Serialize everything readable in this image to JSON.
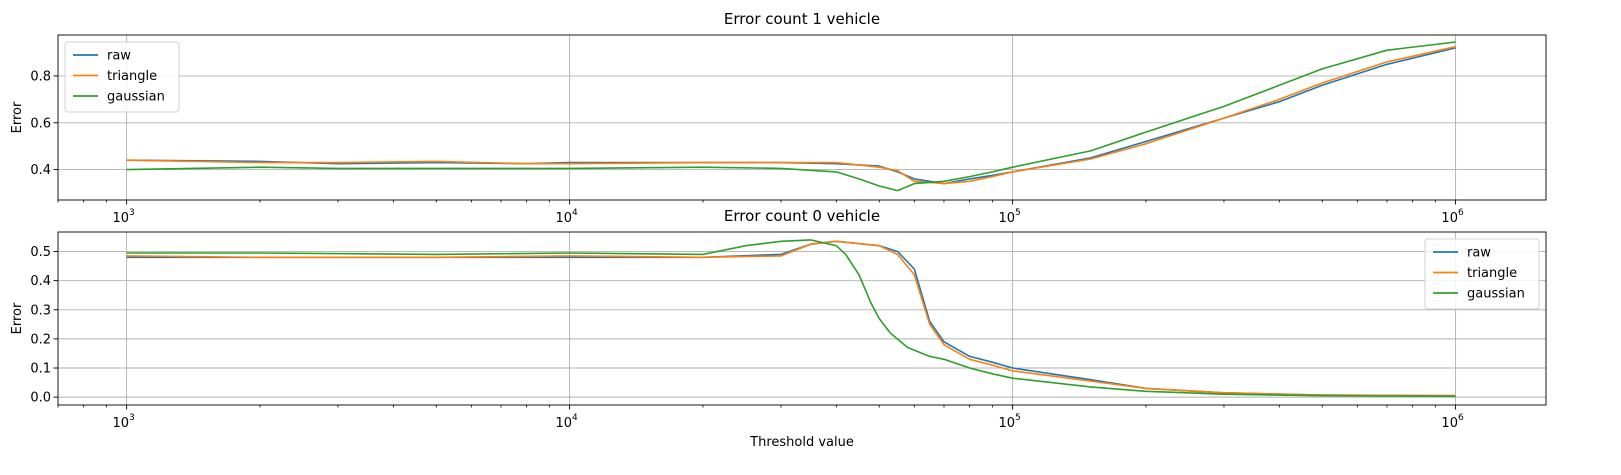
{
  "chart_data": [
    {
      "type": "line",
      "title": "Error count 1 vehicle",
      "xlabel": "",
      "ylabel": "Error",
      "xscale": "log",
      "xlim": [
        700,
        1600000
      ],
      "ylim": [
        0.27,
        0.975
      ],
      "xticks": [
        1000,
        10000,
        100000,
        1000000
      ],
      "xtick_labels": [
        {
          "base": "10",
          "exp": "3"
        },
        {
          "base": "10",
          "exp": "4"
        },
        {
          "base": "10",
          "exp": "5"
        },
        {
          "base": "10",
          "exp": "6"
        }
      ],
      "yticks": [
        0.4,
        0.6,
        0.8
      ],
      "ytick_labels": [
        "0.4",
        "0.6",
        "0.8"
      ],
      "grid": true,
      "legend_position": "upper left",
      "series": [
        {
          "name": "raw",
          "color": "#1f77b4",
          "x": [
            1000,
            2000,
            3000,
            5000,
            8000,
            10000,
            20000,
            30000,
            40000,
            50000,
            55000,
            60000,
            70000,
            80000,
            90000,
            100000,
            150000,
            200000,
            300000,
            400000,
            500000,
            700000,
            1000000
          ],
          "values": [
            0.44,
            0.435,
            0.425,
            0.43,
            0.425,
            0.43,
            0.43,
            0.43,
            0.425,
            0.415,
            0.39,
            0.36,
            0.34,
            0.36,
            0.375,
            0.39,
            0.45,
            0.52,
            0.62,
            0.69,
            0.76,
            0.85,
            0.92
          ]
        },
        {
          "name": "triangle",
          "color": "#ff7f0e",
          "x": [
            1000,
            2000,
            3000,
            5000,
            8000,
            10000,
            20000,
            30000,
            40000,
            50000,
            55000,
            60000,
            70000,
            80000,
            90000,
            100000,
            150000,
            200000,
            300000,
            400000,
            500000,
            700000,
            1000000
          ],
          "values": [
            0.44,
            0.43,
            0.43,
            0.435,
            0.425,
            0.425,
            0.43,
            0.43,
            0.43,
            0.41,
            0.395,
            0.35,
            0.34,
            0.35,
            0.37,
            0.39,
            0.445,
            0.51,
            0.62,
            0.7,
            0.77,
            0.86,
            0.925
          ]
        },
        {
          "name": "gaussian",
          "color": "#2ca02c",
          "x": [
            1000,
            2000,
            3000,
            5000,
            8000,
            10000,
            20000,
            30000,
            40000,
            45000,
            50000,
            55000,
            60000,
            70000,
            80000,
            90000,
            100000,
            150000,
            200000,
            300000,
            400000,
            500000,
            700000,
            1000000
          ],
          "values": [
            0.4,
            0.41,
            0.405,
            0.405,
            0.405,
            0.405,
            0.41,
            0.405,
            0.39,
            0.36,
            0.33,
            0.31,
            0.34,
            0.35,
            0.37,
            0.39,
            0.41,
            0.48,
            0.56,
            0.67,
            0.76,
            0.83,
            0.91,
            0.945
          ]
        }
      ]
    },
    {
      "type": "line",
      "title": "Error count 0 vehicle",
      "xlabel": "Threshold value",
      "ylabel": "Error",
      "xscale": "log",
      "xlim": [
        700,
        1600000
      ],
      "ylim": [
        -0.027,
        0.567
      ],
      "xticks": [
        1000,
        10000,
        100000,
        1000000
      ],
      "xtick_labels": [
        {
          "base": "10",
          "exp": "3"
        },
        {
          "base": "10",
          "exp": "4"
        },
        {
          "base": "10",
          "exp": "5"
        },
        {
          "base": "10",
          "exp": "6"
        }
      ],
      "yticks": [
        0.0,
        0.1,
        0.2,
        0.3,
        0.4,
        0.5
      ],
      "ytick_labels": [
        "0.0",
        "0.1",
        "0.2",
        "0.3",
        "0.4",
        "0.5"
      ],
      "grid": true,
      "legend_position": "upper right",
      "series": [
        {
          "name": "raw",
          "color": "#1f77b4",
          "x": [
            1000,
            2000,
            5000,
            10000,
            20000,
            30000,
            35000,
            40000,
            50000,
            55000,
            60000,
            65000,
            70000,
            80000,
            90000,
            100000,
            150000,
            200000,
            300000,
            500000,
            1000000
          ],
          "values": [
            0.48,
            0.48,
            0.48,
            0.48,
            0.48,
            0.49,
            0.525,
            0.535,
            0.52,
            0.5,
            0.44,
            0.26,
            0.19,
            0.14,
            0.12,
            0.1,
            0.06,
            0.03,
            0.015,
            0.007,
            0.005
          ]
        },
        {
          "name": "triangle",
          "color": "#ff7f0e",
          "x": [
            1000,
            2000,
            5000,
            10000,
            20000,
            30000,
            35000,
            40000,
            50000,
            55000,
            60000,
            65000,
            70000,
            80000,
            90000,
            100000,
            150000,
            200000,
            300000,
            500000,
            1000000
          ],
          "values": [
            0.485,
            0.48,
            0.48,
            0.485,
            0.48,
            0.485,
            0.525,
            0.535,
            0.52,
            0.49,
            0.42,
            0.25,
            0.18,
            0.13,
            0.11,
            0.09,
            0.055,
            0.03,
            0.015,
            0.007,
            0.005
          ]
        },
        {
          "name": "gaussian",
          "color": "#2ca02c",
          "x": [
            1000,
            2000,
            5000,
            10000,
            20000,
            25000,
            30000,
            35000,
            40000,
            42000,
            45000,
            48000,
            50000,
            53000,
            58000,
            65000,
            70000,
            80000,
            90000,
            100000,
            150000,
            200000,
            300000,
            500000,
            1000000
          ],
          "values": [
            0.495,
            0.495,
            0.49,
            0.495,
            0.49,
            0.52,
            0.535,
            0.54,
            0.52,
            0.49,
            0.42,
            0.32,
            0.27,
            0.22,
            0.17,
            0.14,
            0.13,
            0.1,
            0.08,
            0.065,
            0.035,
            0.02,
            0.01,
            0.005,
            0.003
          ]
        }
      ]
    }
  ]
}
